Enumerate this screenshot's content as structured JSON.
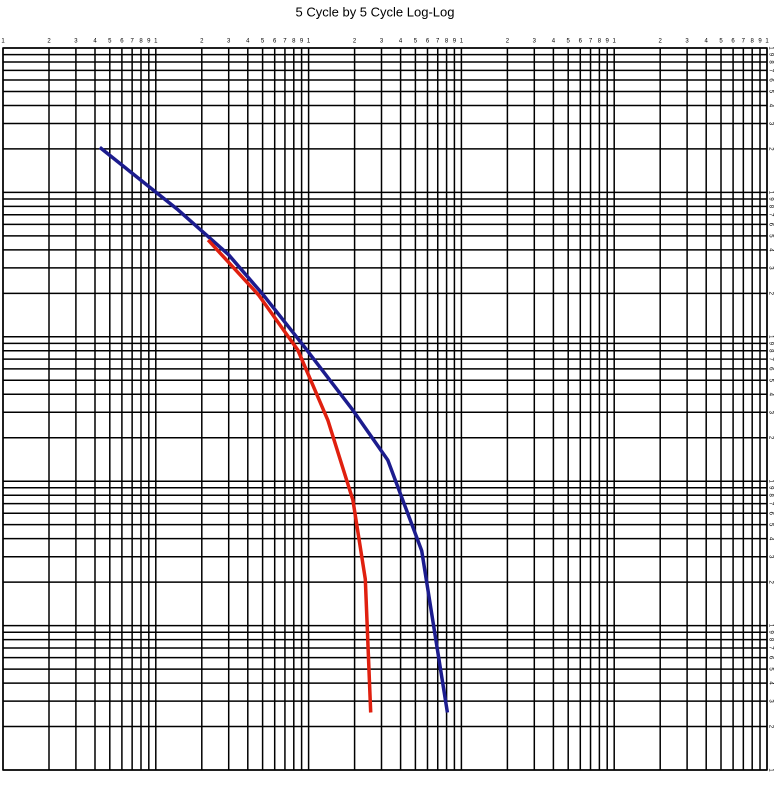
{
  "chart_data": {
    "type": "line",
    "title": "5 Cycle by 5 Cycle Log-Log",
    "log_x": true,
    "log_y": true,
    "grid": true,
    "xlim": [
      1,
      100000
    ],
    "ylim": [
      1,
      100000
    ],
    "xticks": [
      1,
      2,
      3,
      4,
      5,
      6,
      7,
      8,
      9,
      {
        "value": 10,
        "label": "1"
      },
      {
        "value": 20,
        "label": "2"
      },
      {
        "value": 30,
        "label": "3"
      },
      {
        "value": 40,
        "label": "4"
      },
      {
        "value": 50,
        "label": "5"
      },
      {
        "value": 60,
        "label": "6"
      },
      {
        "value": 70,
        "label": "7"
      },
      {
        "value": 80,
        "label": "8"
      },
      {
        "value": 90,
        "label": "9"
      },
      {
        "value": 100,
        "label": "1"
      },
      {
        "value": 200,
        "label": "2"
      },
      {
        "value": 300,
        "label": "3"
      },
      {
        "value": 400,
        "label": "4"
      },
      {
        "value": 500,
        "label": "5"
      },
      {
        "value": 600,
        "label": "6"
      },
      {
        "value": 700,
        "label": "7"
      },
      {
        "value": 800,
        "label": "8"
      },
      {
        "value": 900,
        "label": "9"
      },
      {
        "value": 1000,
        "label": "1"
      },
      {
        "value": 2000,
        "label": "2"
      },
      {
        "value": 3000,
        "label": "3"
      },
      {
        "value": 4000,
        "label": "4"
      },
      {
        "value": 5000,
        "label": "5"
      },
      {
        "value": 6000,
        "label": "6"
      },
      {
        "value": 7000,
        "label": "7"
      },
      {
        "value": 8000,
        "label": "8"
      },
      {
        "value": 9000,
        "label": "9"
      },
      {
        "value": 10000,
        "label": "1"
      },
      {
        "value": 20000,
        "label": "2"
      },
      {
        "value": 30000,
        "label": "3"
      },
      {
        "value": 40000,
        "label": "4"
      },
      {
        "value": 50000,
        "label": "5"
      },
      {
        "value": 60000,
        "label": "6"
      },
      {
        "value": 70000,
        "label": "7"
      },
      {
        "value": 80000,
        "label": "8"
      },
      {
        "value": 90000,
        "label": "9"
      },
      {
        "value": 100000,
        "label": "1"
      }
    ],
    "yticks": [
      1,
      2,
      3,
      4,
      5,
      6,
      7,
      8,
      9,
      {
        "value": 10,
        "label": "1"
      },
      {
        "value": 20,
        "label": "2"
      },
      {
        "value": 30,
        "label": "3"
      },
      {
        "value": 40,
        "label": "4"
      },
      {
        "value": 50,
        "label": "5"
      },
      {
        "value": 60,
        "label": "6"
      },
      {
        "value": 70,
        "label": "7"
      },
      {
        "value": 80,
        "label": "8"
      },
      {
        "value": 90,
        "label": "9"
      },
      {
        "value": 100,
        "label": "1"
      },
      {
        "value": 200,
        "label": "2"
      },
      {
        "value": 300,
        "label": "3"
      },
      {
        "value": 400,
        "label": "4"
      },
      {
        "value": 500,
        "label": "5"
      },
      {
        "value": 600,
        "label": "6"
      },
      {
        "value": 700,
        "label": "7"
      },
      {
        "value": 800,
        "label": "8"
      },
      {
        "value": 900,
        "label": "9"
      },
      {
        "value": 1000,
        "label": "1"
      },
      {
        "value": 2000,
        "label": "2"
      },
      {
        "value": 3000,
        "label": "3"
      },
      {
        "value": 4000,
        "label": "4"
      },
      {
        "value": 5000,
        "label": "5"
      },
      {
        "value": 6000,
        "label": "6"
      },
      {
        "value": 7000,
        "label": "7"
      },
      {
        "value": 8000,
        "label": "8"
      },
      {
        "value": 9000,
        "label": "9"
      },
      {
        "value": 10000,
        "label": "1"
      },
      {
        "value": 20000,
        "label": "2"
      },
      {
        "value": 30000,
        "label": "3"
      },
      {
        "value": 40000,
        "label": "4"
      },
      {
        "value": 50000,
        "label": "5"
      },
      {
        "value": 60000,
        "label": "6"
      },
      {
        "value": 70000,
        "label": "7"
      },
      {
        "value": 80000,
        "label": "8"
      },
      {
        "value": 90000,
        "label": "9"
      },
      {
        "value": 100000,
        "label": "1"
      }
    ],
    "series": [
      {
        "color": "#1c1c8e",
        "x": [
          4.3,
          14,
          30,
          50.5,
          92,
          195,
          330,
          550,
          810
        ],
        "values": [
          20500,
          7560,
          3700,
          1950,
          875,
          310,
          140,
          33,
          2.5
        ]
      },
      {
        "color": "#e0200f",
        "x": [
          22,
          47,
          85,
          134,
          195,
          235,
          255
        ],
        "values": [
          4680,
          1950,
          810,
          263,
          74,
          21,
          2.5
        ]
      }
    ]
  }
}
